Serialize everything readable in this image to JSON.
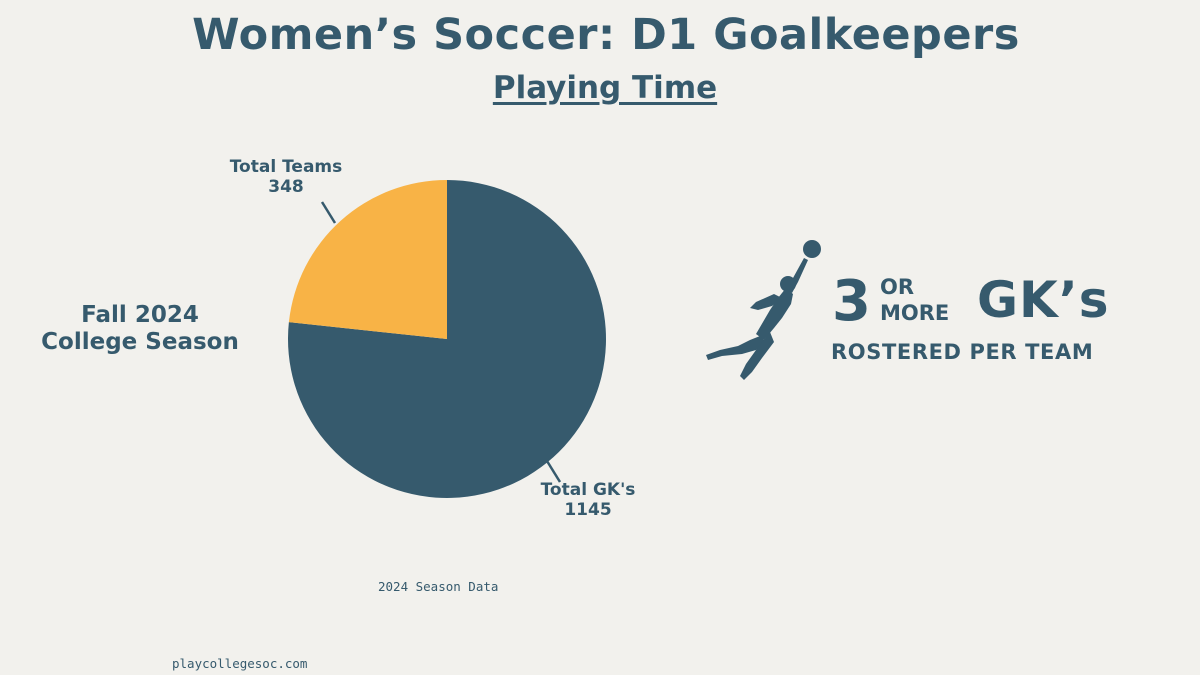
{
  "colors": {
    "background": "#f2f1ed",
    "primary": "#365a6d",
    "accent": "#f8b346"
  },
  "header": {
    "title": "Women’s Soccer: D1 Goalkeepers",
    "subtitle": "Playing Time"
  },
  "season_label": [
    "Fall 2024",
    "College Season"
  ],
  "chart_data": {
    "type": "pie",
    "slices": [
      {
        "label": "Total Teams",
        "value": 348,
        "color": "#f8b346"
      },
      {
        "label": "Total GK's",
        "value": 1145,
        "color": "#365a6d"
      }
    ]
  },
  "labels": {
    "teams_name": "Total Teams",
    "teams_value": "348",
    "gks_name": "Total GK's",
    "gks_value": "1145"
  },
  "stat": {
    "number": "3",
    "or": "OR",
    "more": "MORE",
    "gks": "GK’s",
    "rostered": "ROSTERED PER TEAM",
    "icon": "goalkeeper-diving-icon"
  },
  "footer": {
    "note": "2024 Season Data",
    "site": "playcollegesoc.com"
  }
}
